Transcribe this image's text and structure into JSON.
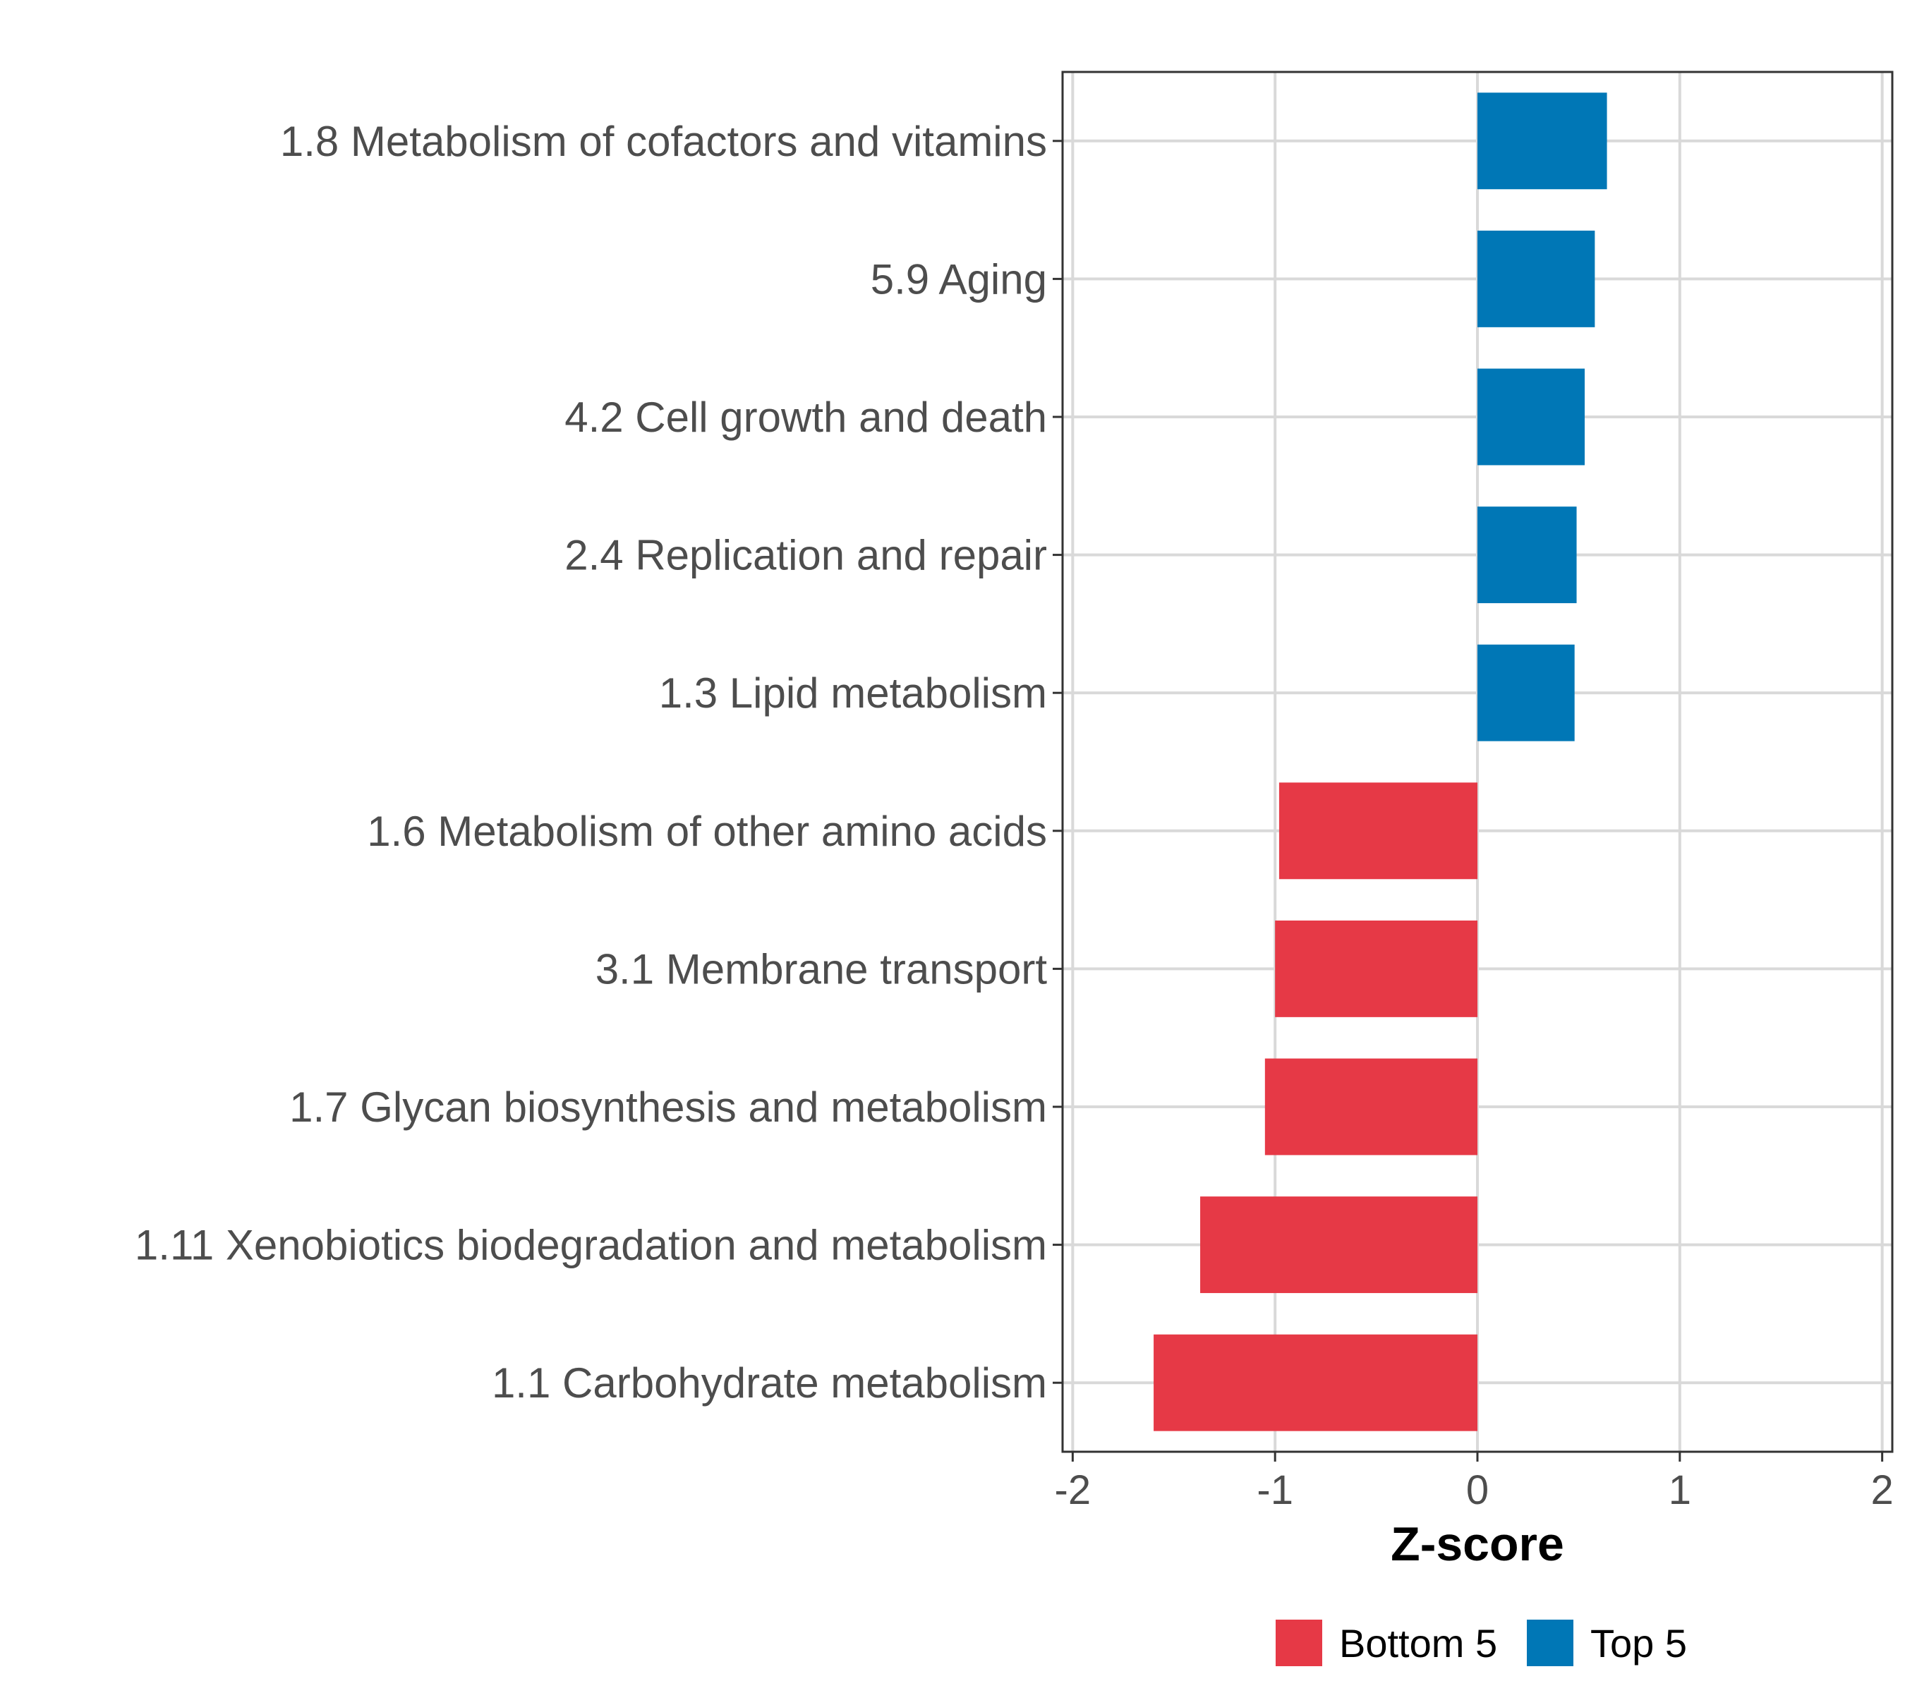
{
  "chart_data": {
    "type": "bar",
    "orientation": "horizontal",
    "title": "",
    "xlabel": "Z-score",
    "ylabel": "",
    "xlim": [
      -2.05,
      2.05
    ],
    "xticks": [
      -2,
      -1,
      0,
      1,
      2
    ],
    "xtick_labels": [
      "-2",
      "-1",
      "0",
      "1",
      "2"
    ],
    "grid": true,
    "legend_position": "bottom",
    "categories": [
      "1.8 Metabolism of cofactors and vitamins",
      "5.9 Aging",
      "4.2 Cell growth and death",
      "2.4 Replication and repair",
      "1.3 Lipid metabolism",
      "1.6 Metabolism of other amino acids",
      "3.1 Membrane transport",
      "1.7 Glycan biosynthesis and metabolism",
      "1.11 Xenobiotics biodegradation and metabolism",
      "1.1 Carbohydrate metabolism"
    ],
    "values": [
      0.64,
      0.58,
      0.53,
      0.49,
      0.48,
      -0.98,
      -1.0,
      -1.05,
      -1.37,
      -1.6
    ],
    "groups": [
      "Top 5",
      "Top 5",
      "Top 5",
      "Top 5",
      "Top 5",
      "Bottom 5",
      "Bottom 5",
      "Bottom 5",
      "Bottom 5",
      "Bottom 5"
    ],
    "legend": [
      {
        "name": "Bottom 5",
        "color": "#e63946"
      },
      {
        "name": "Top 5",
        "color": "#0077b6"
      }
    ]
  }
}
